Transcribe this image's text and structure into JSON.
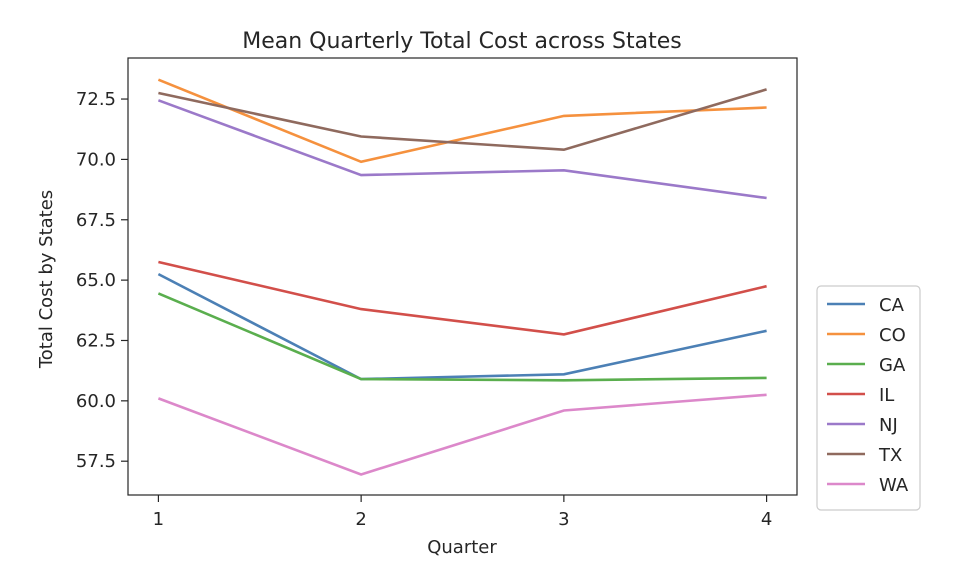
{
  "chart_data": {
    "type": "line",
    "title": "Mean Quarterly Total Cost across States",
    "xlabel": "Quarter",
    "ylabel": "Total Cost by States",
    "x": [
      1,
      2,
      3,
      4
    ],
    "xticks": [
      "1",
      "2",
      "3",
      "4"
    ],
    "yticks": [
      "57.5",
      "60.0",
      "62.5",
      "65.0",
      "67.5",
      "70.0",
      "72.5"
    ],
    "xlim": [
      0.85,
      4.15
    ],
    "ylim": [
      56.1,
      74.2
    ],
    "grid": false,
    "legend_position": "right, outside plot, bottom-aligned",
    "series": [
      {
        "name": "CA",
        "color": "#4c80b5",
        "values": [
          65.25,
          60.9,
          61.1,
          62.9
        ]
      },
      {
        "name": "CO",
        "color": "#f5913e",
        "values": [
          73.3,
          69.9,
          71.8,
          72.15
        ]
      },
      {
        "name": "GA",
        "color": "#5aae4e",
        "values": [
          64.45,
          60.9,
          60.85,
          60.95
        ]
      },
      {
        "name": "IL",
        "color": "#d24f4a",
        "values": [
          65.75,
          63.8,
          62.75,
          64.75
        ]
      },
      {
        "name": "NJ",
        "color": "#9b79c9",
        "values": [
          72.45,
          69.35,
          69.55,
          68.4
        ]
      },
      {
        "name": "TX",
        "color": "#8f6a5e",
        "values": [
          72.75,
          70.95,
          70.4,
          72.9
        ]
      },
      {
        "name": "WA",
        "color": "#dc88ca",
        "values": [
          60.1,
          56.95,
          59.6,
          60.25
        ]
      }
    ]
  }
}
